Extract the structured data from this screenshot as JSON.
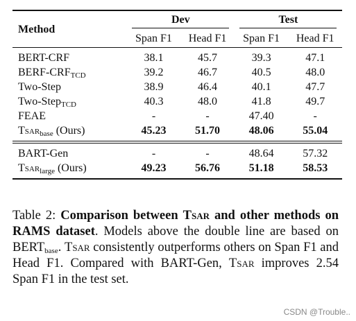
{
  "header": {
    "method": "Method",
    "dev": "Dev",
    "test": "Test",
    "span_f1": "Span F1",
    "head_f1": "Head F1"
  },
  "rows_top": [
    {
      "name": "BERT-CRF",
      "sub": "",
      "suffix": "",
      "dev_span": "38.1",
      "dev_head": "45.7",
      "test_span": "39.3",
      "test_head": "47.1",
      "bold": false
    },
    {
      "name": "BERF-CRF",
      "sub": "TCD",
      "suffix": "",
      "dev_span": "39.2",
      "dev_head": "46.7",
      "test_span": "40.5",
      "test_head": "48.0",
      "bold": false
    },
    {
      "name": "Two-Step",
      "sub": "",
      "suffix": "",
      "dev_span": "38.9",
      "dev_head": "46.4",
      "test_span": "40.1",
      "test_head": "47.7",
      "bold": false
    },
    {
      "name": "Two-Step",
      "sub": "TCD",
      "suffix": "",
      "dev_span": "40.3",
      "dev_head": "48.0",
      "test_span": "41.8",
      "test_head": "49.7",
      "bold": false
    },
    {
      "name": "FEAE",
      "sub": "",
      "suffix": "",
      "dev_span": "-",
      "dev_head": "-",
      "test_span": "47.40",
      "test_head": "-",
      "bold": false
    },
    {
      "name": "Tsar",
      "sub": "base",
      "suffix": " (Ours)",
      "dev_span": "45.23",
      "dev_head": "51.70",
      "test_span": "48.06",
      "test_head": "55.04",
      "bold": true
    }
  ],
  "rows_bottom": [
    {
      "name": "BART-Gen",
      "sub": "",
      "suffix": "",
      "dev_span": "-",
      "dev_head": "-",
      "test_span": "48.64",
      "test_head": "57.32",
      "bold": false
    },
    {
      "name": "Tsar",
      "sub": "large",
      "suffix": " (Ours)",
      "dev_span": "49.23",
      "dev_head": "56.76",
      "test_span": "51.18",
      "test_head": "58.53",
      "bold": true
    }
  ],
  "caption": {
    "label": "Table 2: ",
    "bold_part": "Comparison between Tsar and other methods on RAMS dataset",
    "text_1": ". Models above the double line are based on BERT",
    "bert_sub": "base",
    "text_2": ". Tsar consistently outperforms others on Span F1 and Head F1. Compared with BART-Gen, Tsar improves 2.54 Span F1 in the test set."
  },
  "watermark": "CSDN @Trouble.."
}
